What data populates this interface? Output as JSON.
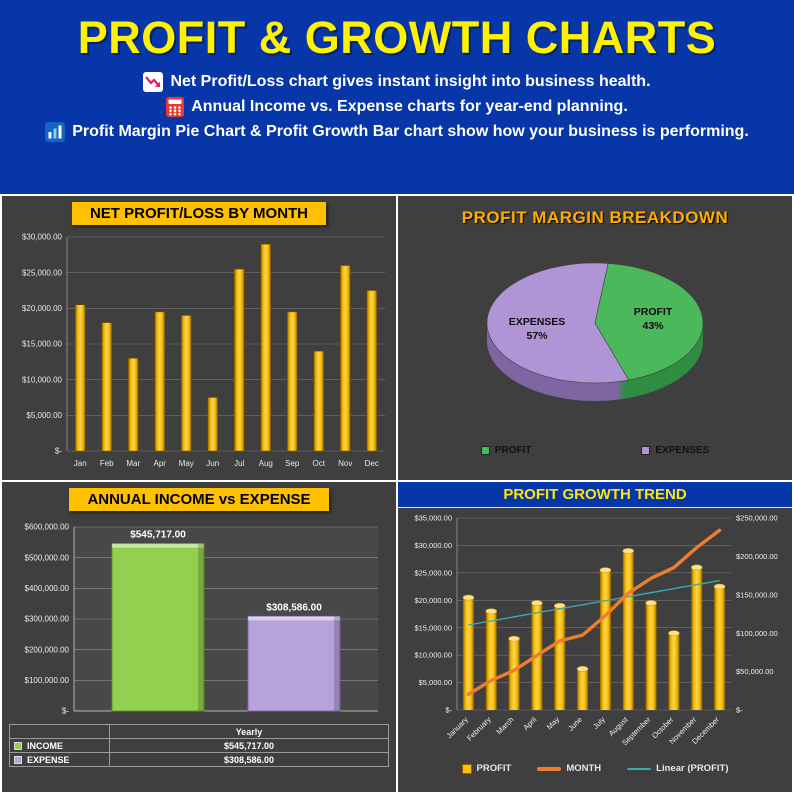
{
  "header": {
    "title": "PROFIT & GROWTH CHARTS",
    "lines": [
      {
        "icon": "chart-decreasing-icon",
        "text": "Net Profit/Loss chart gives instant insight into business health."
      },
      {
        "icon": "calculator-icon",
        "text": "Annual Income vs. Expense charts for year-end planning."
      },
      {
        "icon": "spreadsheet-chart-icon",
        "text": "Profit Margin Pie Chart & Profit Growth Bar chart show how your business is performing."
      }
    ],
    "colors": {
      "background": "#0636A8",
      "title": "#FFF200",
      "text": "#FFFFFF"
    }
  },
  "chart_data": [
    {
      "id": "net_profit",
      "type": "bar",
      "title": "NET PROFIT/LOSS BY MONTH",
      "categories": [
        "Jan",
        "Feb",
        "Mar",
        "Apr",
        "May",
        "Jun",
        "Jul",
        "Aug",
        "Sep",
        "Oct",
        "Nov",
        "Dec"
      ],
      "values": [
        20500,
        18000,
        13000,
        19500,
        19000,
        7500,
        25500,
        29000,
        19500,
        14000,
        26000,
        22500
      ],
      "ylim": [
        0,
        30000
      ],
      "ytick_step": 5000,
      "bar_color": "#FFC000",
      "grid": true,
      "tick_format": "currency",
      "legend_position": "none"
    },
    {
      "id": "profit_margin",
      "type": "pie",
      "title": "PROFIT MARGIN BREAKDOWN",
      "slices": [
        {
          "label": "PROFIT",
          "pct": 43,
          "pct_label": "43%",
          "color": "#4CB85C",
          "side_color": "#2F8C41"
        },
        {
          "label": "EXPENSES",
          "pct": 57,
          "pct_label": "57%",
          "color": "#B095D6",
          "side_color": "#7E66A3"
        }
      ],
      "legend": [
        "PROFIT",
        "EXPENSES"
      ],
      "legend_position": "bottom"
    },
    {
      "id": "annual_income_expense",
      "type": "bar",
      "title": "ANNUAL INCOME vs EXPENSE",
      "categories": [
        "Yearly"
      ],
      "series": [
        {
          "name": "INCOME",
          "values": [
            545717
          ],
          "color": "#92D050",
          "edge": "#5a8f2a",
          "label": "$545,717.00"
        },
        {
          "name": "EXPENSE",
          "values": [
            308586
          ],
          "color": "#B8A2DC",
          "edge": "#7e66a3",
          "label": "$308,586.00"
        }
      ],
      "ylim": [
        0,
        600000
      ],
      "ytick_step": 100000,
      "table": {
        "header": "Yearly",
        "rows": [
          {
            "name": "INCOME",
            "value": "$545,717.00",
            "color": "#92D050"
          },
          {
            "name": "EXPENSE",
            "value": "$308,586.00",
            "color": "#B8A2DC"
          }
        ]
      }
    },
    {
      "id": "profit_growth_trend",
      "type": "combo",
      "title": "PROFIT GROWTH TREND",
      "categories": [
        "January",
        "February",
        "March",
        "April",
        "May",
        "June",
        "July",
        "August",
        "September",
        "October",
        "November",
        "December"
      ],
      "series": [
        {
          "name": "PROFIT",
          "type": "bar",
          "axis": "left",
          "color": "#FFC000",
          "values": [
            20500,
            18000,
            13000,
            19500,
            19000,
            7500,
            25500,
            29000,
            19500,
            14000,
            26000,
            22500
          ]
        },
        {
          "name": "MONTH",
          "type": "line",
          "axis": "right",
          "color": "#ED7D31",
          "values": [
            20500,
            38500,
            51500,
            71000,
            90000,
            97500,
            123000,
            152000,
            171500,
            185500,
            211500,
            234000
          ]
        },
        {
          "name": "Linear (PROFIT)",
          "type": "trend",
          "axis": "left",
          "color": "#3FA8A8",
          "start": 15500,
          "end": 23600
        }
      ],
      "left_ylim": [
        0,
        35000
      ],
      "left_step": 5000,
      "right_ylim": [
        0,
        250000
      ],
      "right_step": 50000,
      "legend_position": "bottom"
    }
  ]
}
